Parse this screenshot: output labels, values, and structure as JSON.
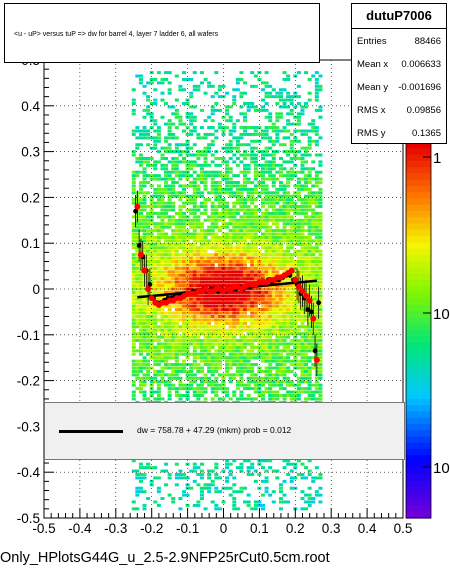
{
  "chart_data": {
    "type": "scatter",
    "title": "<u - uP>       versus  tuP =>  dw for barrel 4, layer 7 ladder 6, all wafers",
    "xlabel": "",
    "ylabel": "",
    "xlim": [
      -0.5,
      0.5
    ],
    "ylim": [
      -0.5,
      0.5
    ],
    "x_tick_labels": [
      "-0.5",
      "-0.4",
      "-0.3",
      "-0.2",
      "-0.1",
      "0",
      "0.1",
      "0.2",
      "0.3",
      "0.4",
      "0.5"
    ],
    "y_tick_labels": [
      "-0.5",
      "-0.4",
      "-0.3",
      "-0.2",
      "-0.1",
      "0",
      "0.1",
      "0.2",
      "0.3",
      "0.4",
      "0.5"
    ],
    "colorbar": {
      "scale": "log",
      "labels": [
        "1",
        "10",
        "10"
      ]
    },
    "series": [
      {
        "marker": "black",
        "x": [
          -0.245,
          -0.235,
          -0.225,
          -0.215,
          -0.205,
          -0.195,
          -0.185,
          -0.175,
          -0.165,
          -0.155,
          -0.145,
          -0.135,
          -0.125,
          -0.115,
          -0.105,
          -0.095,
          -0.085,
          -0.075,
          -0.065,
          -0.055,
          -0.045,
          -0.035,
          -0.025,
          -0.015,
          -0.005,
          0.005,
          0.015,
          0.025,
          0.035,
          0.045,
          0.055,
          0.065,
          0.075,
          0.085,
          0.095,
          0.105,
          0.115,
          0.125,
          0.135,
          0.145,
          0.155,
          0.165,
          0.175,
          0.185,
          0.195,
          0.205,
          0.215,
          0.225,
          0.235,
          0.245,
          0.255,
          0.265
        ],
        "y": [
          0.17,
          0.095,
          0.07,
          0.04,
          0.01,
          -0.02,
          -0.03,
          -0.03,
          -0.025,
          -0.02,
          -0.02,
          -0.015,
          -0.015,
          -0.015,
          -0.01,
          -0.01,
          -0.005,
          -0.005,
          -0.005,
          0.0,
          -0.005,
          0.0,
          0.0,
          -0.005,
          0.0,
          -0.005,
          0.0,
          0.0,
          0.0,
          0.005,
          0.0,
          0.005,
          0.005,
          0.01,
          0.01,
          0.01,
          0.015,
          0.02,
          0.015,
          0.02,
          0.02,
          0.025,
          0.03,
          0.03,
          0.02,
          0.01,
          -0.01,
          -0.02,
          -0.045,
          -0.05,
          -0.135,
          -0.03
        ]
      },
      {
        "marker": "red",
        "x": [
          -0.24,
          -0.23,
          -0.22,
          -0.21,
          -0.2,
          -0.19,
          -0.18,
          -0.17,
          -0.16,
          -0.15,
          -0.14,
          -0.13,
          -0.12,
          -0.11,
          -0.1,
          -0.09,
          -0.08,
          -0.07,
          -0.06,
          -0.05,
          -0.04,
          -0.03,
          -0.02,
          -0.01,
          0.0,
          0.01,
          0.02,
          0.03,
          0.04,
          0.05,
          0.06,
          0.07,
          0.08,
          0.09,
          0.1,
          0.11,
          0.12,
          0.13,
          0.14,
          0.15,
          0.16,
          0.17,
          0.18,
          0.19,
          0.2,
          0.21,
          0.22,
          0.23,
          0.24,
          0.25,
          0.26
        ],
        "y": [
          0.18,
          0.075,
          0.04,
          0.0,
          -0.02,
          -0.03,
          -0.035,
          -0.03,
          -0.03,
          -0.025,
          -0.025,
          -0.02,
          -0.02,
          -0.015,
          -0.01,
          -0.01,
          -0.01,
          -0.005,
          -0.005,
          0.0,
          -0.005,
          -0.005,
          0.0,
          0.0,
          -0.005,
          0.0,
          0.0,
          0.005,
          0.005,
          0.0,
          0.005,
          0.01,
          0.01,
          0.01,
          0.015,
          0.015,
          0.015,
          0.02,
          0.02,
          0.025,
          0.025,
          0.03,
          0.035,
          0.04,
          0.02,
          0.005,
          -0.005,
          -0.015,
          -0.025,
          -0.065,
          -0.155
        ]
      }
    ],
    "fit": {
      "x_range": [
        -0.24,
        0.26
      ],
      "y_start": -0.018,
      "y_end": 0.018
    },
    "stats": {
      "name": "dutuP7006",
      "rows": [
        {
          "k": "Entries",
          "v": "88466"
        },
        {
          "k": "Mean x",
          "v": "0.006633"
        },
        {
          "k": "Mean y",
          "v": "-0.001696"
        },
        {
          "k": "RMS x",
          "v": "0.09856"
        },
        {
          "k": "RMS y",
          "v": "0.1365"
        }
      ]
    },
    "fit_box_text": "dw =  758.78 + 47.29 (mkm) prob = 0.012",
    "footer": "Only_HPlotsG44G_u_2.5-2.9NFP25rCut0.5cm.root"
  }
}
